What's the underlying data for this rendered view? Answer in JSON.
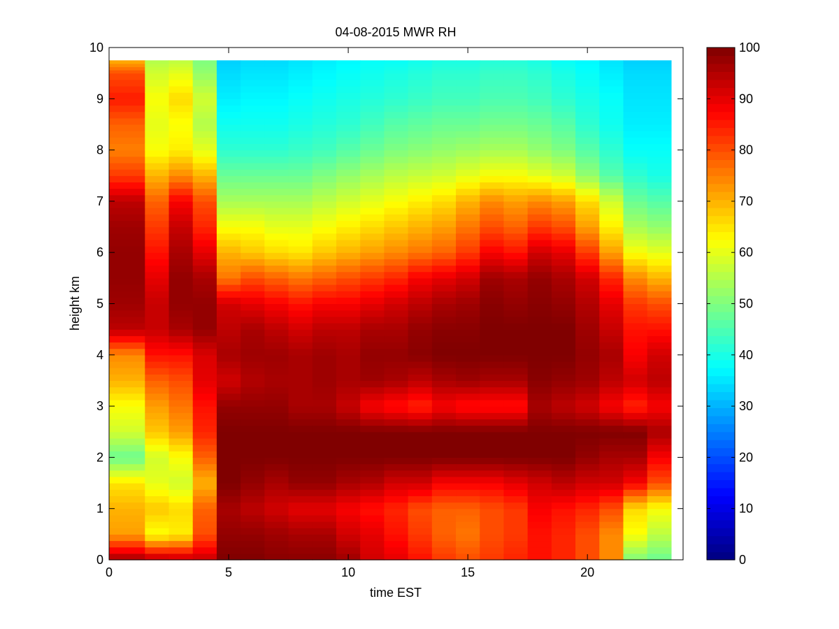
{
  "chart_data": {
    "type": "heatmap",
    "title": "04-08-2015 MWR RH",
    "xlabel": "time EST",
    "ylabel": "height km",
    "xlim": [
      0,
      24
    ],
    "ylim": [
      0,
      10
    ],
    "xticks": [
      0,
      5,
      10,
      15,
      20
    ],
    "yticks": [
      0,
      1,
      2,
      3,
      4,
      5,
      6,
      7,
      8,
      9,
      10
    ],
    "colorbar": {
      "range": [
        0,
        100
      ],
      "ticks": [
        0,
        10,
        20,
        30,
        40,
        50,
        60,
        70,
        80,
        90,
        100
      ],
      "colormap": "jet"
    },
    "column_centers": [
      0.5,
      1.5,
      2.5,
      3.5,
      5.0,
      6.0,
      7.0,
      8.0,
      9.0,
      10.0,
      11.0,
      12.0,
      13.0,
      14.0,
      15.0,
      16.0,
      17.0,
      18.0,
      19.0,
      20.0,
      21.0,
      22.0,
      23.0
    ],
    "column_edges": [
      0,
      1.5,
      2.5,
      3.5,
      4.5,
      5.5,
      6.5,
      7.5,
      8.5,
      9.5,
      10.5,
      11.5,
      12.5,
      13.5,
      14.5,
      15.5,
      16.5,
      17.5,
      18.5,
      19.5,
      20.5,
      21.5,
      22.5,
      23.5
    ],
    "heights_km": [
      0.0,
      0.5,
      1.0,
      1.5,
      2.0,
      2.5,
      3.0,
      3.5,
      4.0,
      4.5,
      5.0,
      5.5,
      6.0,
      6.5,
      7.0,
      7.5,
      8.0,
      8.5,
      9.0,
      9.5,
      9.75
    ],
    "profiles": [
      [
        97,
        72,
        70,
        65,
        48,
        58,
        62,
        70,
        74,
        94,
        97,
        98,
        98,
        97,
        94,
        82,
        75,
        78,
        85,
        80,
        70
      ],
      [
        95,
        62,
        68,
        60,
        58,
        68,
        72,
        78,
        86,
        93,
        93,
        90,
        86,
        82,
        78,
        70,
        62,
        60,
        62,
        58,
        55
      ],
      [
        94,
        64,
        66,
        58,
        62,
        72,
        76,
        80,
        86,
        96,
        98,
        98,
        96,
        93,
        88,
        74,
        64,
        62,
        66,
        60,
        56
      ],
      [
        93,
        80,
        78,
        70,
        78,
        84,
        86,
        90,
        91,
        98,
        98,
        96,
        90,
        84,
        80,
        70,
        60,
        55,
        58,
        52,
        50
      ],
      [
        100,
        98,
        96,
        100,
        100,
        100,
        98,
        92,
        96,
        94,
        92,
        76,
        70,
        62,
        54,
        48,
        42,
        39,
        36,
        34,
        33
      ],
      [
        100,
        98,
        94,
        98,
        100,
        100,
        98,
        95,
        97,
        96,
        90,
        80,
        68,
        62,
        54,
        48,
        42,
        39,
        37,
        35,
        34
      ],
      [
        99,
        97,
        92,
        96,
        100,
        100,
        98,
        96,
        97,
        94,
        88,
        78,
        66,
        60,
        54,
        48,
        42,
        39,
        37,
        35,
        34
      ],
      [
        99,
        96,
        90,
        98,
        100,
        100,
        96,
        96,
        96,
        92,
        86,
        76,
        65,
        60,
        54,
        48,
        43,
        40,
        38,
        36,
        35
      ],
      [
        99,
        96,
        90,
        98,
        100,
        100,
        96,
        97,
        97,
        94,
        88,
        78,
        68,
        62,
        56,
        50,
        44,
        41,
        39,
        37,
        36
      ],
      [
        97,
        92,
        88,
        96,
        100,
        100,
        93,
        96,
        96,
        94,
        88,
        80,
        70,
        64,
        58,
        52,
        46,
        42,
        40,
        38,
        37
      ],
      [
        92,
        90,
        86,
        95,
        100,
        100,
        88,
        97,
        98,
        96,
        90,
        82,
        72,
        66,
        60,
        54,
        48,
        44,
        41,
        39,
        38
      ],
      [
        90,
        86,
        84,
        92,
        100,
        100,
        86,
        96,
        98,
        96,
        92,
        84,
        74,
        68,
        62,
        56,
        50,
        46,
        42,
        40,
        38
      ],
      [
        86,
        82,
        80,
        92,
        100,
        100,
        84,
        94,
        99,
        98,
        94,
        88,
        76,
        70,
        64,
        57,
        51,
        47,
        43,
        41,
        39
      ],
      [
        82,
        78,
        78,
        88,
        100,
        100,
        88,
        96,
        100,
        99,
        96,
        90,
        78,
        72,
        66,
        58,
        52,
        48,
        44,
        42,
        40
      ],
      [
        80,
        76,
        78,
        88,
        100,
        100,
        86,
        97,
        100,
        99,
        97,
        92,
        82,
        76,
        70,
        60,
        53,
        48,
        44,
        42,
        40
      ],
      [
        82,
        80,
        80,
        88,
        100,
        100,
        86,
        96,
        100,
        100,
        99,
        97,
        88,
        80,
        74,
        62,
        54,
        49,
        45,
        43,
        41
      ],
      [
        84,
        82,
        82,
        90,
        100,
        100,
        86,
        96,
        100,
        100,
        98,
        96,
        86,
        78,
        72,
        62,
        54,
        49,
        45,
        43,
        41
      ],
      [
        86,
        86,
        88,
        92,
        100,
        100,
        96,
        99,
        100,
        100,
        99,
        98,
        92,
        82,
        74,
        60,
        52,
        48,
        44,
        42,
        40
      ],
      [
        84,
        84,
        86,
        94,
        100,
        100,
        94,
        98,
        100,
        100,
        98,
        96,
        90,
        80,
        72,
        58,
        50,
        46,
        42,
        40,
        38
      ],
      [
        80,
        80,
        84,
        92,
        98,
        100,
        92,
        97,
        98,
        97,
        95,
        92,
        82,
        72,
        66,
        52,
        46,
        42,
        40,
        38,
        37
      ],
      [
        74,
        74,
        80,
        92,
        96,
        100,
        88,
        94,
        96,
        93,
        90,
        84,
        72,
        64,
        58,
        46,
        42,
        39,
        38,
        36,
        35
      ],
      [
        50,
        62,
        66,
        88,
        96,
        100,
        84,
        92,
        88,
        86,
        82,
        74,
        62,
        54,
        48,
        42,
        38,
        36,
        35,
        34,
        33
      ],
      [
        48,
        56,
        62,
        80,
        88,
        96,
        88,
        94,
        92,
        86,
        80,
        70,
        60,
        52,
        46,
        40,
        38,
        36,
        35,
        34,
        33
      ]
    ]
  }
}
